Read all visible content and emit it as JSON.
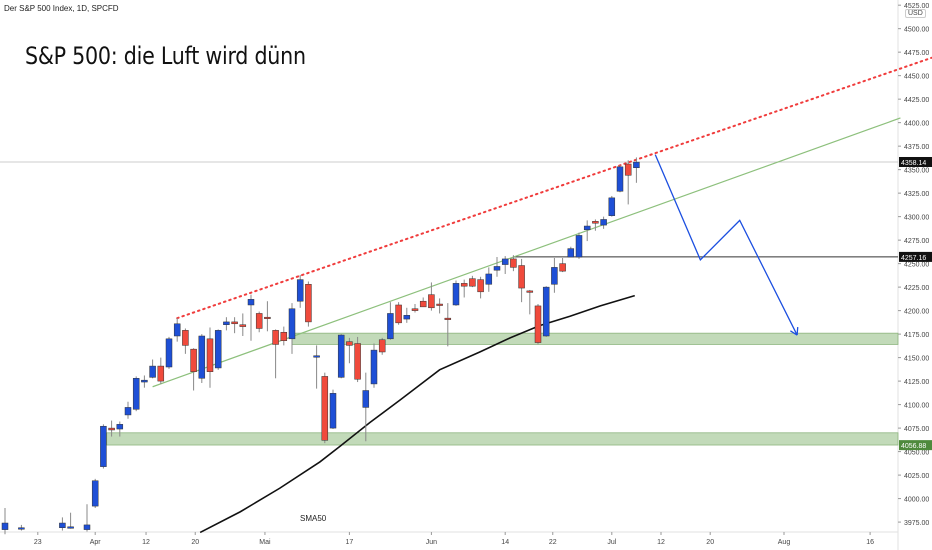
{
  "header": {
    "symbol_line": "Der S&P 500 Index, 1D, SPCFD",
    "title": "S&P 500: die Luft wird dünn",
    "currency": "USD"
  },
  "colors": {
    "up": "#1e4fd6",
    "down": "#f04a3c",
    "zone": "#b7d3ad",
    "trend": "#8dc07c",
    "resistance": "#f03c3c",
    "projection": "#1c4fe0",
    "sma": "#111111",
    "label_green": "#4e8a3c"
  },
  "chart_data": {
    "type": "candlestick",
    "title": "S&P 500: die Luft wird dünn",
    "ylim": [
      3960,
      4530
    ],
    "xlim": [
      0,
      109
    ],
    "y_ticks": [
      3975,
      4000,
      4025,
      4050,
      4075,
      4100,
      4125,
      4150,
      4175,
      4200,
      4225,
      4250,
      4275,
      4300,
      4325,
      4350,
      4375,
      4400,
      4425,
      4450,
      4475,
      4500,
      4525
    ],
    "x_ticks": [
      {
        "label": "23",
        "t": 4
      },
      {
        "label": "Apr",
        "t": 11
      },
      {
        "label": "12",
        "t": 17.2
      },
      {
        "label": "20",
        "t": 23.2
      },
      {
        "label": "Mai",
        "t": 31.7
      },
      {
        "label": "17",
        "t": 42
      },
      {
        "label": "Jun",
        "t": 52
      },
      {
        "label": "14",
        "t": 61
      },
      {
        "label": "22",
        "t": 66.8
      },
      {
        "label": "Jul",
        "t": 74
      },
      {
        "label": "12",
        "t": 80
      },
      {
        "label": "20",
        "t": 86
      },
      {
        "label": "Aug",
        "t": 95
      },
      {
        "label": "16",
        "t": 105.5
      }
    ],
    "candles": [
      {
        "t": 0,
        "o": 3967,
        "h": 3990,
        "l": 3962,
        "c": 3974
      },
      {
        "t": 2,
        "o": 3969,
        "h": 3972,
        "l": 3966,
        "c": 3969
      },
      {
        "t": 7,
        "o": 3969,
        "h": 3980,
        "l": 3966,
        "c": 3974
      },
      {
        "t": 8,
        "o": 3970,
        "h": 3985,
        "l": 3968,
        "c": 3970
      },
      {
        "t": 10,
        "o": 3967,
        "h": 3994,
        "l": 3965,
        "c": 3972
      },
      {
        "t": 11,
        "o": 3992,
        "h": 4021,
        "l": 3990,
        "c": 4019
      },
      {
        "t": 12,
        "o": 4034,
        "h": 4079,
        "l": 4032,
        "c": 4077
      },
      {
        "t": 13,
        "o": 4075,
        "h": 4083,
        "l": 4066,
        "c": 4073
      },
      {
        "t": 14,
        "o": 4074,
        "h": 4082,
        "l": 4066,
        "c": 4079
      },
      {
        "t": 15,
        "o": 4089,
        "h": 4103,
        "l": 4085,
        "c": 4097
      },
      {
        "t": 16,
        "o": 4095,
        "h": 4130,
        "l": 4093,
        "c": 4128
      },
      {
        "t": 17,
        "o": 4124,
        "h": 4131,
        "l": 4118,
        "c": 4126
      },
      {
        "t": 18,
        "o": 4129,
        "h": 4148,
        "l": 4128,
        "c": 4141
      },
      {
        "t": 19,
        "o": 4141,
        "h": 4150,
        "l": 4122,
        "c": 4125
      },
      {
        "t": 20,
        "o": 4140,
        "h": 4172,
        "l": 4138,
        "c": 4170
      },
      {
        "t": 21,
        "o": 4173,
        "h": 4192,
        "l": 4167,
        "c": 4186
      },
      {
        "t": 22,
        "o": 4179,
        "h": 4181,
        "l": 4154,
        "c": 4163
      },
      {
        "t": 23,
        "o": 4159,
        "h": 4160,
        "l": 4115,
        "c": 4135
      },
      {
        "t": 24,
        "o": 4128,
        "h": 4175,
        "l": 4123,
        "c": 4173
      },
      {
        "t": 25,
        "o": 4170,
        "h": 4182,
        "l": 4118,
        "c": 4135
      },
      {
        "t": 26,
        "o": 4139,
        "h": 4180,
        "l": 4137,
        "c": 4179
      },
      {
        "t": 27,
        "o": 4185,
        "h": 4193,
        "l": 4179,
        "c": 4188
      },
      {
        "t": 28,
        "o": 4188,
        "h": 4193,
        "l": 4176,
        "c": 4186
      },
      {
        "t": 29,
        "o": 4185,
        "h": 4197,
        "l": 4173,
        "c": 4183
      },
      {
        "t": 30,
        "o": 4206,
        "h": 4217,
        "l": 4168,
        "c": 4212
      },
      {
        "t": 31,
        "o": 4197,
        "h": 4199,
        "l": 4177,
        "c": 4181
      },
      {
        "t": 32,
        "o": 4193,
        "h": 4210,
        "l": 4178,
        "c": 4192
      },
      {
        "t": 33,
        "o": 4179,
        "h": 4180,
        "l": 4128,
        "c": 4164
      },
      {
        "t": 34,
        "o": 4177,
        "h": 4183,
        "l": 4163,
        "c": 4168
      },
      {
        "t": 35,
        "o": 4170,
        "h": 4208,
        "l": 4154,
        "c": 4202
      },
      {
        "t": 36,
        "o": 4210,
        "h": 4238,
        "l": 4203,
        "c": 4233
      },
      {
        "t": 37,
        "o": 4228,
        "h": 4231,
        "l": 4183,
        "c": 4188
      },
      {
        "t": 38,
        "o": 4151,
        "h": 4163,
        "l": 4117,
        "c": 4152
      },
      {
        "t": 39,
        "o": 4130,
        "h": 4134,
        "l": 4059,
        "c": 4062
      },
      {
        "t": 40,
        "o": 4075,
        "h": 4116,
        "l": 4074,
        "c": 4112
      },
      {
        "t": 41,
        "o": 4129,
        "h": 4175,
        "l": 4128,
        "c": 4174
      },
      {
        "t": 42,
        "o": 4167,
        "h": 4171,
        "l": 4144,
        "c": 4163
      },
      {
        "t": 43,
        "o": 4165,
        "h": 4172,
        "l": 4124,
        "c": 4127
      },
      {
        "t": 44,
        "o": 4097,
        "h": 4134,
        "l": 4061,
        "c": 4115
      },
      {
        "t": 45,
        "o": 4122,
        "h": 4165,
        "l": 4118,
        "c": 4158
      },
      {
        "t": 46,
        "o": 4169,
        "h": 4171,
        "l": 4153,
        "c": 4156
      },
      {
        "t": 47,
        "o": 4170,
        "h": 4209,
        "l": 4169,
        "c": 4197
      },
      {
        "t": 48,
        "o": 4206,
        "h": 4209,
        "l": 4185,
        "c": 4187
      },
      {
        "t": 49,
        "o": 4191,
        "h": 4203,
        "l": 4187,
        "c": 4195
      },
      {
        "t": 50,
        "o": 4202,
        "h": 4207,
        "l": 4198,
        "c": 4200
      },
      {
        "t": 51,
        "o": 4210,
        "h": 4214,
        "l": 4204,
        "c": 4204
      },
      {
        "t": 52,
        "o": 4217,
        "h": 4230,
        "l": 4200,
        "c": 4203
      },
      {
        "t": 53,
        "o": 4207,
        "h": 4213,
        "l": 4197,
        "c": 4206
      },
      {
        "t": 54,
        "o": 4192,
        "h": 4208,
        "l": 4162,
        "c": 4191
      },
      {
        "t": 55,
        "o": 4206,
        "h": 4232,
        "l": 4205,
        "c": 4229
      },
      {
        "t": 56,
        "o": 4229,
        "h": 4233,
        "l": 4214,
        "c": 4226
      },
      {
        "t": 57,
        "o": 4234,
        "h": 4237,
        "l": 4225,
        "c": 4226
      },
      {
        "t": 58,
        "o": 4233,
        "h": 4236,
        "l": 4213,
        "c": 4220
      },
      {
        "t": 59,
        "o": 4228,
        "h": 4246,
        "l": 4220,
        "c": 4239
      },
      {
        "t": 60,
        "o": 4243,
        "h": 4257,
        "l": 4236,
        "c": 4247
      },
      {
        "t": 61,
        "o": 4249,
        "h": 4258,
        "l": 4239,
        "c": 4255
      },
      {
        "t": 62,
        "o": 4255,
        "h": 4259,
        "l": 4242,
        "c": 4246
      },
      {
        "t": 63,
        "o": 4248,
        "h": 4255,
        "l": 4209,
        "c": 4224
      },
      {
        "t": 64,
        "o": 4221,
        "h": 4222,
        "l": 4196,
        "c": 4220
      },
      {
        "t": 65,
        "o": 4205,
        "h": 4207,
        "l": 4164,
        "c": 4166
      },
      {
        "t": 66,
        "o": 4173,
        "h": 4226,
        "l": 4172,
        "c": 4225
      },
      {
        "t": 67,
        "o": 4228,
        "h": 4256,
        "l": 4219,
        "c": 4246
      },
      {
        "t": 68,
        "o": 4250,
        "h": 4256,
        "l": 4241,
        "c": 4242
      },
      {
        "t": 69,
        "o": 4257,
        "h": 4268,
        "l": 4257,
        "c": 4266
      },
      {
        "t": 70,
        "o": 4257,
        "h": 4283,
        "l": 4255,
        "c": 4280
      },
      {
        "t": 71,
        "o": 4286,
        "h": 4296,
        "l": 4274,
        "c": 4290
      },
      {
        "t": 72,
        "o": 4295,
        "h": 4297,
        "l": 4285,
        "c": 4293
      },
      {
        "t": 73,
        "o": 4291,
        "h": 4300,
        "l": 4287,
        "c": 4297
      },
      {
        "t": 74,
        "o": 4301,
        "h": 4322,
        "l": 4300,
        "c": 4320
      },
      {
        "t": 75,
        "o": 4327,
        "h": 4355,
        "l": 4326,
        "c": 4353
      },
      {
        "t": 76,
        "o": 4356,
        "h": 4360,
        "l": 4313,
        "c": 4344
      },
      {
        "t": 77,
        "o": 4352,
        "h": 4363,
        "l": 4336,
        "c": 4358
      }
    ],
    "sma50": {
      "label": "SMA50",
      "points": [
        [
          23.8,
          3964
        ],
        [
          28.7,
          3986
        ],
        [
          33.5,
          4011
        ],
        [
          38.4,
          4039
        ],
        [
          40.9,
          4056
        ],
        [
          44.5,
          4081
        ],
        [
          48.2,
          4105
        ],
        [
          53,
          4137
        ],
        [
          57.9,
          4156
        ],
        [
          61.6,
          4171
        ],
        [
          65.2,
          4184
        ],
        [
          68.9,
          4194
        ],
        [
          72.6,
          4205
        ],
        [
          76.8,
          4216
        ]
      ]
    },
    "resistance_line": {
      "from": [
        21,
        4192
      ],
      "to": [
        113,
        4469
      ]
    },
    "trend_line": {
      "from": [
        18,
        4119
      ],
      "to": [
        109.2,
        4405
      ]
    },
    "zones": [
      {
        "from_t": 35,
        "top": 4176,
        "bottom": 4164
      },
      {
        "from_t": 12.4,
        "top": 4070,
        "bottom": 4057
      }
    ],
    "hlines": [
      {
        "price": 4358.14,
        "label": "4358.14",
        "from_t": -1,
        "style": "last"
      },
      {
        "price": 4257.16,
        "label": "4257.16",
        "from_t": 62,
        "style": "level"
      }
    ],
    "zone_label": {
      "price": 4056.88,
      "label": "4056.88"
    },
    "projection": [
      [
        79.3,
        4366
      ],
      [
        84.8,
        4254
      ],
      [
        89.6,
        4296
      ],
      [
        96.6,
        4174
      ]
    ]
  }
}
